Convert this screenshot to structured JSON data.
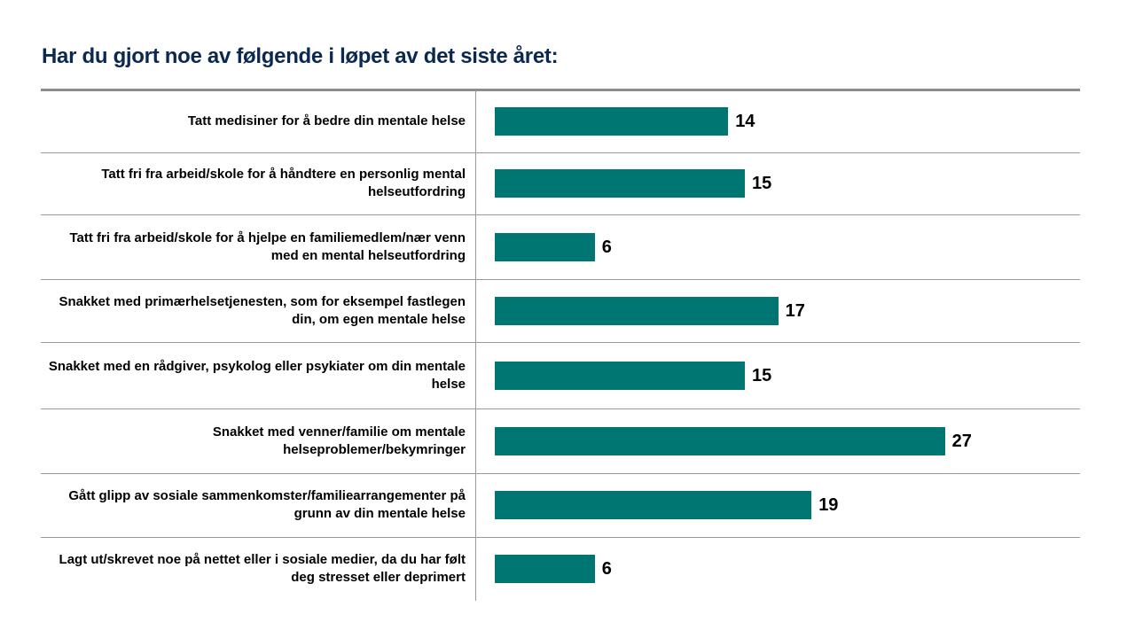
{
  "chart_data": {
    "type": "bar",
    "orientation": "horizontal",
    "title": "Har du gjort noe av følgende i løpet av det siste året:",
    "categories": [
      "Tatt medisiner for å bedre din mentale helse",
      "Tatt fri fra arbeid/skole for å håndtere en personlig mental helseutfordring",
      "Tatt fri fra arbeid/skole for å hjelpe en familiemedlem/nær venn med en mental helseutfordring",
      "Snakket med primærhelsetjenesten, som for eksempel fastlegen din, om egen mentale helse",
      "Snakket med en rådgiver, psykolog eller psykiater om din mentale helse",
      "Snakket med venner/familie om mentale helseproblemer/bekymringer",
      "Gått glipp av sosiale sammenkomster/familiearrangementer på grunn av din mentale helse",
      "Lagt ut/skrevet noe på nettet eller i sosiale medier, da du har følt deg stresset eller deprimert"
    ],
    "values": [
      14,
      15,
      6,
      17,
      15,
      27,
      19,
      6
    ],
    "xlim": [
      0,
      30
    ],
    "grid": false,
    "legend": "none",
    "bar_color": "#007672"
  }
}
